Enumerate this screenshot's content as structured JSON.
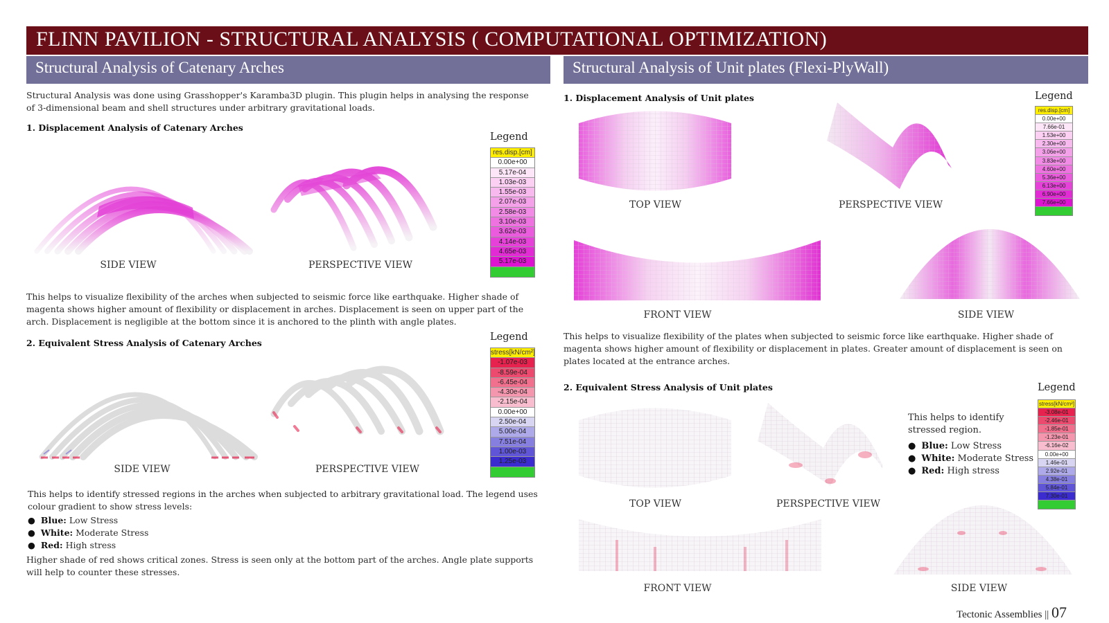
{
  "title": "FLINN PAVILION - STRUCTURAL ANALYSIS ( COMPUTATIONAL OPTIMIZATION)",
  "left": {
    "heading": "Structural Analysis of Catenary Arches",
    "intro": "Structural Analysis was done using Grasshopper's Karamba3D plugin. This plugin helps in analysing the response of 3-dimensional beam and shell structures under arbitrary gravitational loads.",
    "disp": {
      "subtitle": "1. Displacement Analysis of Catenary Arches",
      "side_caption": "SIDE VIEW",
      "persp_caption": "PERSPECTIVE VIEW",
      "legend_title": "Legend",
      "legend_header": "res.disp.[cm]",
      "legend_values": [
        "0.00e+00",
        "5.17e-04",
        "1.03e-03",
        "1.55e-03",
        "2.07e-03",
        "2.58e-03",
        "3.10e-03",
        "3.62e-03",
        "4.14e-03",
        "4.65e-03",
        "5.17e-03"
      ],
      "legend_colors": [
        "#ffffff",
        "#fde6f8",
        "#fbd0f3",
        "#f8b9ee",
        "#f5a1ea",
        "#f28be6",
        "#ee73e1",
        "#ea5bdd",
        "#e642d9",
        "#e22ad5",
        "#de12d1"
      ],
      "description": "This helps to visualize flexibility of the arches when subjected to seismic force like earthquake. Higher shade of magenta shows higher amount of flexibility or displacement in arches. Displacement is seen on upper part of the arch. Displacement is negligible at the bottom since it is anchored to the plinth with angle plates."
    },
    "stress": {
      "subtitle": "2. Equivalent Stress Analysis of Catenary Arches",
      "side_caption": "SIDE VIEW",
      "persp_caption": "PERSPECTIVE VIEW",
      "legend_title": "Legend",
      "legend_header": "stress[kN/cm²]",
      "legend_values": [
        "-1.07e-03",
        "-8.59e-04",
        "-6.45e-04",
        "-4.30e-04",
        "-2.15e-04",
        "0.00e+00",
        "2.50e-04",
        "5.00e-04",
        "7.51e-04",
        "1.00e-03",
        "1.25e-03"
      ],
      "legend_colors": [
        "#e8224e",
        "#ec4a6e",
        "#f0708e",
        "#f497ae",
        "#f8bdce",
        "#ffffff",
        "#d7d5f2",
        "#aeaaea",
        "#877fe0",
        "#5f55d6",
        "#3a2cce"
      ],
      "description": "This helps to identify stressed regions in the arches when subjected to arbitrary gravitational load. The legend uses colour gradient to show stress levels:",
      "bullets": [
        {
          "key": "Blue:",
          "text": " Low Stress"
        },
        {
          "key": "White:",
          "text": " Moderate Stress"
        },
        {
          "key": "Red:",
          "text": " High stress"
        }
      ],
      "closing": "Higher shade of red shows critical zones. Stress is seen only at the bottom part of the arches. Angle plate supports will help to counter these stresses."
    }
  },
  "right": {
    "heading": "Structural Analysis of Unit plates (Flexi-PlyWall)",
    "disp": {
      "subtitle": "1. Displacement Analysis of Unit plates",
      "top_caption": "TOP VIEW",
      "persp_caption": "PERSPECTIVE VIEW",
      "front_caption": "FRONT VIEW",
      "side_caption": "SIDE VIEW",
      "legend_title": "Legend",
      "legend_header": "res.disp.[cm]",
      "legend_values": [
        "0.00e+00",
        "7.66e-01",
        "1.53e+00",
        "2.30e+00",
        "3.06e+00",
        "3.83e+00",
        "4.60e+00",
        "5.36e+00",
        "6.13e+00",
        "6.90e+00",
        "7.66e+00"
      ],
      "legend_colors": [
        "#ffffff",
        "#fde6f8",
        "#fbd0f3",
        "#f8b9ee",
        "#f5a1ea",
        "#f28be6",
        "#ee73e1",
        "#ea5bdd",
        "#e642d9",
        "#e22ad5",
        "#de12d1"
      ],
      "description": "This helps to visualize flexibility of the plates when subjected to seismic force like earthquake. Higher shade of magenta shows higher amount of flexibility or displacement in plates. Greater amount of displacement is seen on plates located at the entrance arches."
    },
    "stress": {
      "subtitle": "2. Equivalent Stress Analysis of Unit plates",
      "top_caption": "TOP VIEW",
      "persp_caption": "PERSPECTIVE VIEW",
      "front_caption": "FRONT VIEW",
      "side_caption": "SIDE VIEW",
      "legend_title": "Legend",
      "legend_header": "stress[kN/cm²]",
      "legend_values": [
        "-3.08e-01",
        "-2.46e-01",
        "-1.85e-01",
        "-1.23e-01",
        "-6.16e-02",
        "0.00e+00",
        "1.46e-01",
        "2.92e-01",
        "4.38e-01",
        "5.84e-01",
        "7.30e-01"
      ],
      "legend_colors": [
        "#e8224e",
        "#ec4a6e",
        "#f0708e",
        "#f497ae",
        "#f8bdce",
        "#ffffff",
        "#d7d5f2",
        "#aeaaea",
        "#877fe0",
        "#5f55d6",
        "#3a2cce"
      ],
      "note": "This helps to identify stressed region.",
      "bullets": [
        {
          "key": "Blue:",
          "text": " Low Stress"
        },
        {
          "key": "White:",
          "text": " Moderate Stress"
        },
        {
          "key": "Red:",
          "text": " High stress"
        }
      ]
    }
  },
  "footer": {
    "label": "Tectonic Assemblies ||",
    "page": "07"
  },
  "colors": {
    "title_bar": "#6a0f17",
    "section_bar": "#727098",
    "legend_header": "#ffee00",
    "legend_footer": "#33cc33",
    "magenta": "#e020d0",
    "stress_red": "#e8224e",
    "stress_blue": "#6a60d8"
  }
}
